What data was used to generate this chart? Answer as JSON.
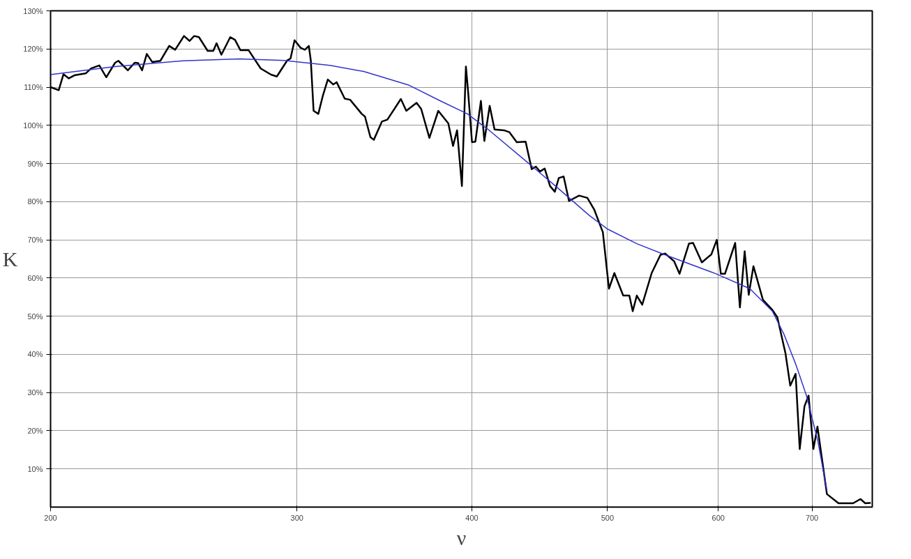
{
  "chart_data": {
    "type": "line",
    "xlabel": "ν",
    "ylabel": "K",
    "log": "x",
    "grid": true,
    "marker": "none",
    "line_style": "solid",
    "xlim": [
      200,
      773
    ],
    "ylim": [
      0,
      130
    ],
    "xticks": [
      200,
      300,
      400,
      500,
      600,
      700
    ],
    "yticks": [
      {
        "value": 10,
        "label": "10%"
      },
      {
        "value": 20,
        "label": "20%"
      },
      {
        "value": 30,
        "label": "30%"
      },
      {
        "value": 40,
        "label": "40%"
      },
      {
        "value": 50,
        "label": "50%"
      },
      {
        "value": 60,
        "label": "60%"
      },
      {
        "value": 70,
        "label": "70%"
      },
      {
        "value": 80,
        "label": "80%"
      },
      {
        "value": 90,
        "label": "90%"
      },
      {
        "value": 100,
        "label": "100%"
      },
      {
        "value": 110,
        "label": "110%"
      },
      {
        "value": 120,
        "label": "120%"
      },
      {
        "value": 130,
        "label": "130%"
      }
    ],
    "series": [
      {
        "color": "#000000",
        "x": [
          200,
          202.7,
          204.3,
          206.1,
          208.0,
          211.9,
          213.8,
          216.7,
          219.2,
          222.4,
          223.6,
          227.1,
          229.7,
          231.0,
          232.5,
          234.3,
          236.4,
          239.6,
          243.1,
          245.5,
          249.1,
          251.4,
          253.3,
          255.3,
          259.0,
          261.4,
          262.8,
          264.9,
          268.8,
          270.9,
          273.3,
          277.0,
          282.6,
          287.4,
          290.2,
          295.2,
          296.8,
          298.8,
          301.8,
          303.9,
          305.9,
          306.9,
          308.3,
          310.7,
          313.1,
          315.6,
          318.4,
          320.2,
          324.5,
          327.4,
          333.7,
          335.5,
          338.5,
          340.4,
          345.0,
          348.1,
          355.9,
          359.1,
          365.2,
          368.0,
          373.0,
          378.5,
          384.8,
          387.8,
          390.4,
          393.5,
          396.1,
          397.4,
          400.1,
          402.3,
          406.0,
          408.3,
          411.9,
          415.2,
          421.7,
          425.5,
          430.7,
          437.0,
          441.4,
          444.4,
          447.4,
          450.9,
          454.9,
          458.5,
          461.5,
          465.2,
          469.3,
          477.2,
          483.7,
          489.1,
          496.2,
          501.2,
          505.7,
          513.1,
          518.3,
          521.2,
          524.7,
          529.4,
          537.7,
          545.6,
          549.9,
          557.9,
          562.9,
          571.7,
          575.6,
          584.0,
          593.2,
          598.5,
          602.5,
          606.6,
          616.9,
          621.7,
          626.6,
          630.8,
          635.7,
          645.7,
          655.3,
          661.2,
          670.1,
          675.4,
          681.4,
          686.0,
          691.4,
          696.1,
          701.6,
          706.3,
          717.4,
          731.2,
          749.0,
          758.1,
          764.1,
          771.0
        ],
        "values": [
          110,
          109.2,
          113.4,
          112.3,
          113.1,
          113.6,
          114.9,
          115.7,
          112.6,
          116.4,
          116.9,
          114.4,
          116.4,
          116.3,
          114.4,
          118.7,
          116.6,
          116.9,
          120.8,
          119.8,
          123.4,
          122.1,
          123.4,
          123.1,
          119.5,
          119.5,
          121.5,
          118.5,
          123.1,
          122.4,
          119.7,
          119.7,
          114.9,
          113.3,
          112.8,
          117.0,
          117.5,
          122.3,
          120.3,
          119.8,
          120.8,
          116.9,
          103.8,
          103.0,
          107.9,
          112.0,
          110.7,
          111.3,
          107.0,
          106.7,
          103.0,
          102.3,
          96.9,
          96.2,
          101.0,
          101.5,
          106.9,
          103.8,
          105.9,
          104.3,
          96.7,
          103.8,
          100.5,
          94.6,
          98.7,
          84.1,
          115.4,
          109.5,
          95.6,
          95.7,
          106.4,
          95.9,
          105.1,
          98.9,
          98.7,
          98.2,
          95.6,
          95.7,
          88.5,
          89.2,
          87.9,
          88.7,
          84.1,
          82.6,
          86.2,
          86.6,
          80.2,
          81.6,
          81.0,
          78.0,
          72.0,
          57.2,
          61.3,
          55.4,
          55.4,
          51.3,
          55.4,
          53.0,
          61.3,
          66.1,
          66.4,
          64.4,
          61.1,
          69.0,
          69.2,
          64.1,
          66.2,
          70.0,
          61.1,
          61.1,
          69.2,
          52.3,
          67.0,
          55.6,
          63.1,
          54.3,
          51.8,
          49.7,
          40.3,
          31.8,
          34.9,
          15.2,
          26.4,
          29.2,
          15.2,
          21.1,
          3.4,
          1.0,
          1.0,
          2.1,
          1.0,
          1.1
        ]
      },
      {
        "color": "#3333cc",
        "x": [
          200,
          222.4,
          248.6,
          273.0,
          293.8,
          316.6,
          334.8,
          360.8,
          379.8,
          397.1,
          410.6,
          434.1,
          459.0,
          485.3,
          500.2,
          524.7,
          548.7,
          597.9,
          632.1,
          655.8,
          668.4,
          681.4,
          693.5,
          706.7,
          717.4
        ],
        "values": [
          113.3,
          115.4,
          116.9,
          117.4,
          117.0,
          115.7,
          114.1,
          110.5,
          106.4,
          103.0,
          99.0,
          91.6,
          84.1,
          76.4,
          72.8,
          69.0,
          66.2,
          61.1,
          57.2,
          51.3,
          45.3,
          37.5,
          29.3,
          17.4,
          4.3
        ]
      }
    ]
  }
}
